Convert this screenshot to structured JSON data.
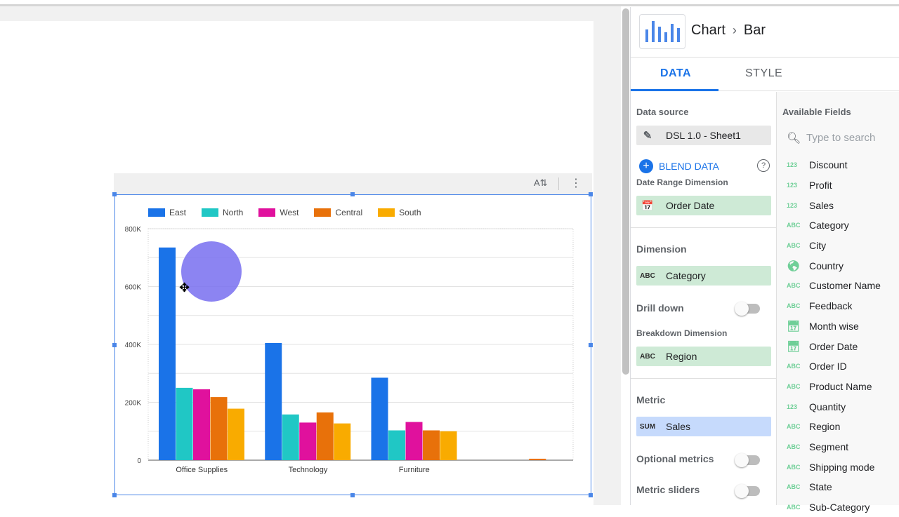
{
  "breadcrumb": {
    "root": "Chart",
    "current": "Bar"
  },
  "tabs": [
    {
      "label": "DATA"
    },
    {
      "label": "STYLE"
    }
  ],
  "data_panel": {
    "data_source_title": "Data source",
    "data_source_value": "DSL 1.0 - Sheet1",
    "blend_label": "BLEND DATA",
    "date_range_title": "Date Range Dimension",
    "date_range_value": "Order Date",
    "dimension_title": "Dimension",
    "dimension_tag": "ABC",
    "dimension_value": "Category",
    "drill_down_label": "Drill down",
    "breakdown_title": "Breakdown Dimension",
    "breakdown_tag": "ABC",
    "breakdown_value": "Region",
    "metric_title": "Metric",
    "metric_tag": "SUM",
    "metric_value": "Sales",
    "optional_metrics_label": "Optional metrics",
    "metric_sliders_label": "Metric sliders"
  },
  "available_fields": {
    "title": "Available Fields",
    "search_placeholder": "Type to search",
    "items": [
      {
        "type": "123",
        "name": "Discount"
      },
      {
        "type": "123",
        "name": "Profit"
      },
      {
        "type": "123",
        "name": "Sales"
      },
      {
        "type": "ABC",
        "name": "Category"
      },
      {
        "type": "ABC",
        "name": "City"
      },
      {
        "type": "globe",
        "name": "Country"
      },
      {
        "type": "ABC",
        "name": "Customer Name"
      },
      {
        "type": "ABC",
        "name": "Feedback"
      },
      {
        "type": "date",
        "name": "Month wise"
      },
      {
        "type": "date",
        "name": "Order Date"
      },
      {
        "type": "ABC",
        "name": "Order ID"
      },
      {
        "type": "ABC",
        "name": "Product Name"
      },
      {
        "type": "123",
        "name": "Quantity"
      },
      {
        "type": "ABC",
        "name": "Region"
      },
      {
        "type": "ABC",
        "name": "Segment"
      },
      {
        "type": "ABC",
        "name": "Shipping mode"
      },
      {
        "type": "ABC",
        "name": "State"
      },
      {
        "type": "ABC",
        "name": "Sub-Category"
      }
    ]
  },
  "colors": {
    "accent": "#1a73e8",
    "selection": "#4a86e8",
    "chip_green": "#ceead6",
    "chip_blue": "#c6dafc"
  },
  "chart_data": {
    "type": "bar",
    "categories": [
      "Office Supplies",
      "Technology",
      "Furniture",
      ""
    ],
    "series": [
      {
        "name": "East",
        "color": "#1a73e8",
        "values": [
          735000,
          405000,
          285000,
          0
        ]
      },
      {
        "name": "North",
        "color": "#20c7c5",
        "values": [
          250000,
          158000,
          103000,
          0
        ]
      },
      {
        "name": "West",
        "color": "#e0119d",
        "values": [
          245000,
          130000,
          132000,
          0
        ]
      },
      {
        "name": "Central",
        "color": "#e8710a",
        "values": [
          218000,
          165000,
          103000,
          5000
        ]
      },
      {
        "name": "South",
        "color": "#f9ab00",
        "values": [
          178000,
          127000,
          100000,
          0
        ]
      }
    ],
    "yticks": [
      "0",
      "200K",
      "400K",
      "600K",
      "800K"
    ],
    "ylim": [
      0,
      800000
    ],
    "grid": true,
    "legend_position": "top-left",
    "title": "",
    "xlabel": "",
    "ylabel": ""
  }
}
